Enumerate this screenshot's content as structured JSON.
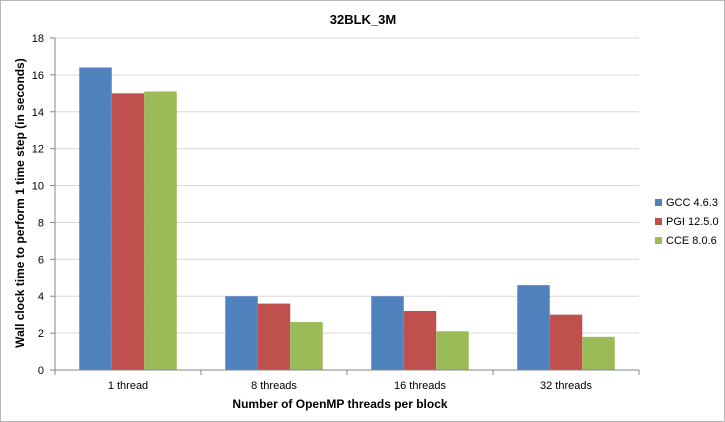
{
  "chart_data": {
    "type": "bar",
    "title": "32BLK_3M",
    "xlabel": "Number of OpenMP threads per block",
    "ylabel": "Wall clock time to perform 1 time step (in seconds)",
    "categories": [
      "1 thread",
      "8 threads",
      "16 threads",
      "32 threads"
    ],
    "series": [
      {
        "name": "GCC 4.6.3",
        "color": "#4f81bd",
        "values": [
          16.4,
          4.0,
          4.0,
          4.6
        ]
      },
      {
        "name": "PGI 12.5.0",
        "color": "#c0504d",
        "values": [
          15.0,
          3.6,
          3.2,
          3.0
        ]
      },
      {
        "name": "CCE 8.0.6",
        "color": "#9bbb59",
        "values": [
          15.1,
          2.6,
          2.1,
          1.8
        ]
      }
    ],
    "ylim": [
      0,
      18
    ],
    "yticks": [
      0,
      2,
      4,
      6,
      8,
      10,
      12,
      14,
      16,
      18
    ],
    "grid": true,
    "legend_position": "right"
  }
}
